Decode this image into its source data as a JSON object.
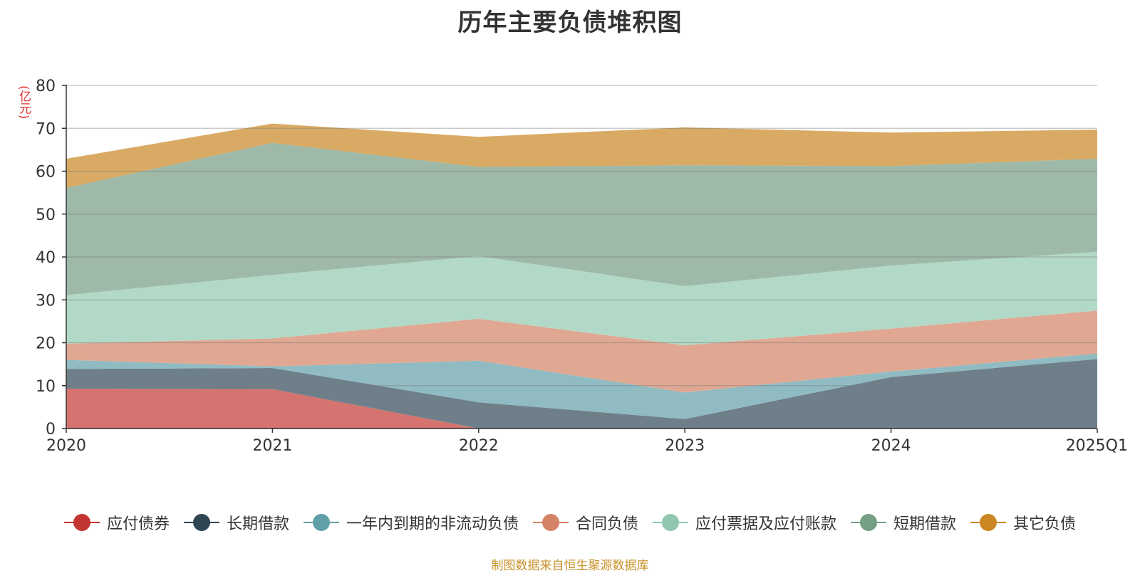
{
  "chart_data": {
    "type": "area",
    "title": "历年主要负债堆积图",
    "unit_label": "(亿元)",
    "xlabel": "",
    "ylabel": "(亿元)",
    "categories": [
      "2020",
      "2021",
      "2022",
      "2023",
      "2024",
      "2025Q1"
    ],
    "y_ticks": [
      "0",
      "10",
      "20",
      "30",
      "40",
      "50",
      "60",
      "70",
      "80"
    ],
    "ylim": [
      0,
      80
    ],
    "stacked": true,
    "grid": true,
    "legend_position": "bottom",
    "series": [
      {
        "name": "应付债券",
        "color": "#c23531",
        "fill": "#d4736f",
        "values": [
          9.3,
          9.2,
          0,
          0,
          0,
          0
        ]
      },
      {
        "name": "长期借款",
        "color": "#2f4554",
        "fill": "#6e7f89",
        "values": [
          4.6,
          4.9,
          6.1,
          2.2,
          12.0,
          16.2
        ]
      },
      {
        "name": "一年内到期的非流动负债",
        "color": "#61a0a8",
        "fill": "#90bbc2",
        "values": [
          2.1,
          0.4,
          9.7,
          6.2,
          1.3,
          1.3
        ]
      },
      {
        "name": "合同负债",
        "color": "#d48265",
        "fill": "#e0a892",
        "values": [
          3.8,
          6.5,
          9.8,
          11.0,
          10.0,
          10.0
        ]
      },
      {
        "name": "应付票据及应付账款",
        "color": "#91c7ae",
        "fill": "#b2d9c7",
        "values": [
          11.3,
          14.8,
          14.6,
          13.8,
          14.7,
          13.7
        ]
      },
      {
        "name": "短期借款",
        "color": "#749f83",
        "fill": "#9eb9a8",
        "values": [
          25.0,
          30.8,
          20.8,
          28.2,
          23.2,
          21.7
        ]
      },
      {
        "name": "其它负债",
        "color": "#ca8622",
        "fill": "#d9aa64",
        "values": [
          6.8,
          4.5,
          7.0,
          8.8,
          7.8,
          6.8
        ]
      }
    ]
  },
  "source_note": "制图数据来自恒生聚源数据库"
}
